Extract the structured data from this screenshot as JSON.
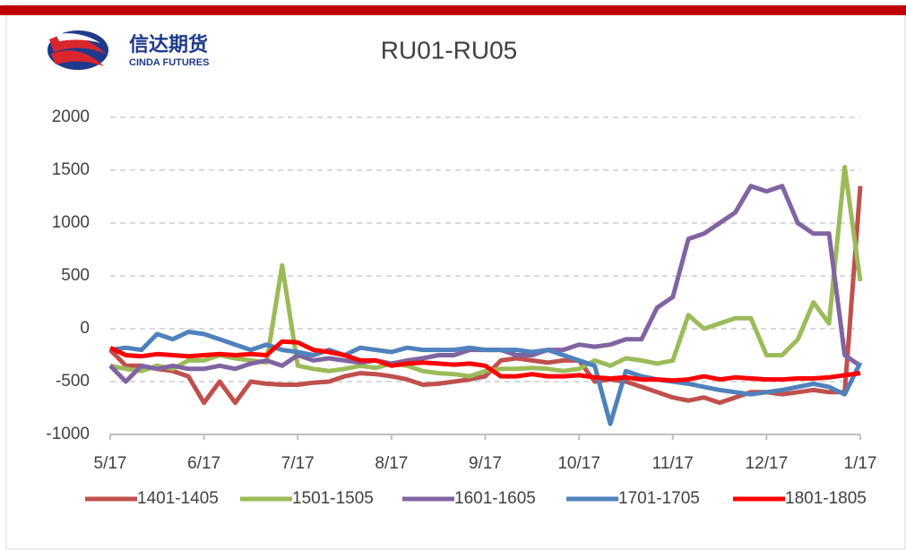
{
  "logo": {
    "name": "信达期货",
    "name_en": "CINDA FUTURES"
  },
  "chart_data": {
    "type": "line",
    "title": "RU01-RU05",
    "categories": [
      "5/17",
      null,
      null,
      null,
      null,
      null,
      "6/17",
      null,
      null,
      null,
      null,
      null,
      "7/17",
      null,
      null,
      null,
      null,
      null,
      "8/17",
      null,
      null,
      null,
      null,
      null,
      "9/17",
      null,
      null,
      null,
      null,
      null,
      "10/17",
      null,
      null,
      null,
      null,
      null,
      "11/17",
      null,
      null,
      null,
      null,
      null,
      "12/17",
      null,
      null,
      null,
      null,
      null,
      "1/17"
    ],
    "series": [
      {
        "name": "1401-1405",
        "color": "#c0504d",
        "values": [
          -200,
          -350,
          -350,
          -380,
          -400,
          -450,
          -700,
          -500,
          -700,
          -500,
          -520,
          -530,
          -530,
          -510,
          -500,
          -450,
          -420,
          -430,
          -450,
          -480,
          -530,
          -520,
          -500,
          -480,
          -450,
          -300,
          -280,
          -300,
          -320,
          -300,
          -300,
          -500,
          -480,
          -500,
          -550,
          -600,
          -650,
          -680,
          -650,
          -700,
          -650,
          -600,
          -600,
          -620,
          -600,
          -580,
          -600,
          -600,
          1350
        ]
      },
      {
        "name": "1501-1505",
        "color": "#9bbb59",
        "values": [
          -350,
          -380,
          -400,
          -350,
          -380,
          -300,
          -300,
          -250,
          -280,
          -300,
          -320,
          600,
          -350,
          -380,
          -400,
          -380,
          -350,
          -370,
          -330,
          -350,
          -400,
          -420,
          -430,
          -450,
          -400,
          -380,
          -380,
          -370,
          -380,
          -400,
          -380,
          -300,
          -350,
          -280,
          -300,
          -330,
          -300,
          130,
          0,
          50,
          100,
          100,
          -250,
          -250,
          -100,
          250,
          50,
          1530,
          450
        ]
      },
      {
        "name": "1601-1605",
        "color": "#8064a2",
        "values": [
          -350,
          -500,
          -350,
          -380,
          -350,
          -380,
          -380,
          -350,
          -380,
          -330,
          -300,
          -350,
          -250,
          -300,
          -280,
          -300,
          -320,
          -300,
          -330,
          -300,
          -280,
          -250,
          -250,
          -200,
          -200,
          -200,
          -250,
          -250,
          -200,
          -200,
          -150,
          -170,
          -150,
          -100,
          -100,
          200,
          300,
          850,
          900,
          1000,
          1100,
          1350,
          1300,
          1350,
          1000,
          900,
          900,
          -250,
          -350
        ]
      },
      {
        "name": "1701-1705",
        "color": "#4f81bd",
        "values": [
          -200,
          -180,
          -200,
          -50,
          -100,
          -30,
          -50,
          -100,
          -150,
          -200,
          -150,
          -200,
          -220,
          -250,
          -200,
          -250,
          -180,
          -200,
          -220,
          -180,
          -200,
          -200,
          -200,
          -180,
          -200,
          -200,
          -200,
          -220,
          -200,
          -250,
          -300,
          -350,
          -900,
          -400,
          -450,
          -480,
          -500,
          -520,
          -550,
          -580,
          -600,
          -620,
          -600,
          -580,
          -550,
          -520,
          -550,
          -620,
          -320
        ]
      },
      {
        "name": "1801-1805",
        "color": "#ff0000",
        "values": [
          -180,
          -250,
          -260,
          -240,
          -250,
          -260,
          -250,
          -240,
          -250,
          -240,
          -250,
          -120,
          -130,
          -200,
          -220,
          -250,
          -300,
          -300,
          -350,
          -330,
          -320,
          -330,
          -340,
          -330,
          -350,
          -450,
          -450,
          -430,
          -450,
          -450,
          -440,
          -460,
          -470,
          -460,
          -480,
          -480,
          -490,
          -480,
          -450,
          -480,
          -460,
          -470,
          -480,
          -480,
          -470,
          -470,
          -460,
          -440,
          -420
        ]
      }
    ],
    "ylim": [
      -1000,
      2000
    ],
    "yticks": [
      -1000,
      -500,
      0,
      500,
      1000,
      1500,
      2000
    ],
    "grid": true,
    "legend": "bottom"
  }
}
